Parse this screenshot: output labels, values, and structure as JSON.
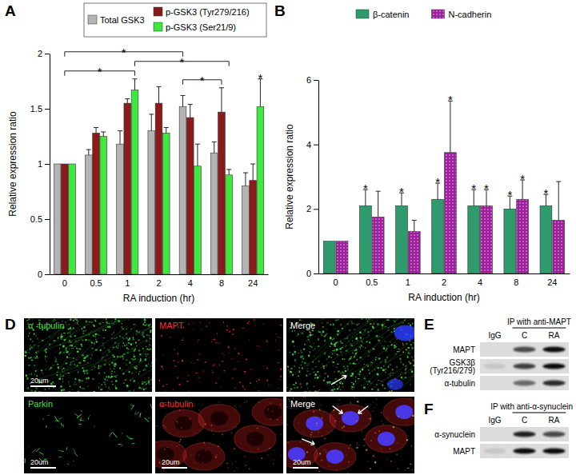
{
  "chart_data": [
    {
      "title": "A",
      "type": "bar",
      "x_label": "RA induction (hr)",
      "y_label": "Relative expression ratio",
      "categories": [
        "0",
        "0.5",
        "1",
        "2",
        "4",
        "8",
        "24"
      ],
      "series": [
        {
          "name": "Total GSK3",
          "color": "#b4b4b4",
          "values": [
            1,
            1.08,
            1.18,
            1.3,
            1.52,
            1.1,
            0.8
          ],
          "errors": [
            null,
            0.05,
            0.12,
            0.15,
            0.1,
            0.1,
            0.12
          ]
        },
        {
          "name": "p-GSK3 (Tyr279/216)",
          "color": "#8b1a1a",
          "values": [
            1,
            1.28,
            1.55,
            1.55,
            1.42,
            1.47,
            0.85
          ],
          "errors": [
            null,
            0.05,
            0.04,
            0.15,
            0.12,
            0.22,
            0.15
          ]
        },
        {
          "name": "p-GSK3 (Ser21/9)",
          "color": "#3ee83e",
          "values": [
            1,
            1.25,
            1.67,
            1.28,
            0.98,
            0.9,
            1.52
          ],
          "errors": [
            null,
            0.04,
            0.1,
            0.05,
            0.2,
            0.05,
            0.25
          ]
        }
      ],
      "ylim": [
        0,
        2
      ],
      "yticks": [
        0,
        0.5,
        1,
        1.5,
        2
      ],
      "legend": "top",
      "annotations": [
        {
          "text": "*",
          "from": {
            "category": "0"
          },
          "to": {
            "category": "1",
            "series": "p-GSK3 (Ser21/9)"
          }
        },
        {
          "text": "*",
          "from": {
            "category": "4",
            "series": "Total GSK3"
          },
          "to": {
            "category": "8",
            "series": "p-GSK3 (Tyr279/216)"
          }
        },
        {
          "text": "*",
          "from": {
            "category": "1",
            "series": "p-GSK3 (Ser21/9)"
          },
          "to": {
            "category": "8",
            "series": "p-GSK3 (Ser21/9)"
          }
        },
        {
          "text": "*",
          "from": {
            "category": "0"
          },
          "to": {
            "category": "4",
            "series": "Total GSK3"
          }
        },
        {
          "text": "*",
          "category": "24",
          "series": "p-GSK3 (Ser21/9)"
        }
      ]
    },
    {
      "title": "B",
      "type": "bar",
      "x_label": "RA induction (hr)",
      "y_label": "Relative expression ratio",
      "categories": [
        "0",
        "0.5",
        "1",
        "2",
        "4",
        "8",
        "24"
      ],
      "series": [
        {
          "name": "β-catenin",
          "color": "#2f9a6c",
          "values": [
            1,
            2.1,
            2.1,
            2.3,
            2.1,
            2.0,
            2.1
          ],
          "errors": [
            null,
            0.5,
            0.4,
            0.5,
            0.5,
            0.4,
            0.35
          ]
        },
        {
          "name": "N-cadherin",
          "color": "#9c1f9c",
          "values": [
            1,
            1.75,
            1.3,
            3.75,
            2.1,
            2.3,
            1.65
          ],
          "errors": [
            null,
            0.8,
            0.35,
            1.6,
            0.5,
            0.6,
            1.2
          ]
        }
      ],
      "ylim": [
        0,
        6
      ],
      "yticks": [
        0,
        2,
        4,
        6
      ],
      "legend": "top",
      "annotations": [
        {
          "text": "*",
          "category": "0.5",
          "series": "β-catenin"
        },
        {
          "text": "*",
          "category": "1",
          "series": "β-catenin"
        },
        {
          "text": "*",
          "category": "2",
          "series": "β-catenin"
        },
        {
          "text": "*",
          "category": "2",
          "series": "N-cadherin"
        },
        {
          "text": "*",
          "category": "4",
          "series": "β-catenin"
        },
        {
          "text": "*",
          "category": "4",
          "series": "N-cadherin"
        },
        {
          "text": "*",
          "category": "8",
          "series": "β-catenin"
        },
        {
          "text": "*",
          "category": "8",
          "series": "N-cadherin"
        },
        {
          "text": "*",
          "category": "24",
          "series": "β-catenin"
        }
      ]
    }
  ],
  "panel_d": {
    "title": "D",
    "images": [
      {
        "label": "α -tubulin",
        "color": "#3fe03f",
        "scale_bar": "20um"
      },
      {
        "label": "MAPT",
        "color": "#ff3030"
      },
      {
        "label": "Merge",
        "color": "#ffffff"
      },
      {
        "label": "Parkin",
        "color": "#3fe03f",
        "scale_bar": "20um"
      },
      {
        "label": "α-tubulin",
        "color": "#ff3030",
        "scale_bar": "20um"
      },
      {
        "label": "Merge",
        "color": "#ffffff",
        "scale_bar": "20um"
      }
    ]
  },
  "panel_e": {
    "title": "E",
    "ip_label": "IP with anti-MAPT",
    "lanes": [
      "IgG",
      "C",
      "RA"
    ],
    "rows": [
      {
        "label": [
          "MAPT"
        ],
        "intensity": [
          0,
          0.7,
          1
        ]
      },
      {
        "label": [
          "GSK3β",
          "(Tyr216/279)"
        ],
        "intensity": [
          0.1,
          0.75,
          1
        ]
      },
      {
        "label": [
          "α-tubulin"
        ],
        "intensity": [
          0,
          0.55,
          0.85
        ]
      }
    ]
  },
  "panel_f": {
    "title": "F",
    "ip_label": "IP with anti-α-synuclein",
    "lanes": [
      "IgG",
      "C",
      "RA"
    ],
    "rows": [
      {
        "label": [
          "α-synuclein"
        ],
        "intensity": [
          0,
          0.9,
          0.7
        ]
      },
      {
        "label": [
          "MAPT"
        ],
        "intensity": [
          0.1,
          1,
          1
        ]
      }
    ]
  }
}
